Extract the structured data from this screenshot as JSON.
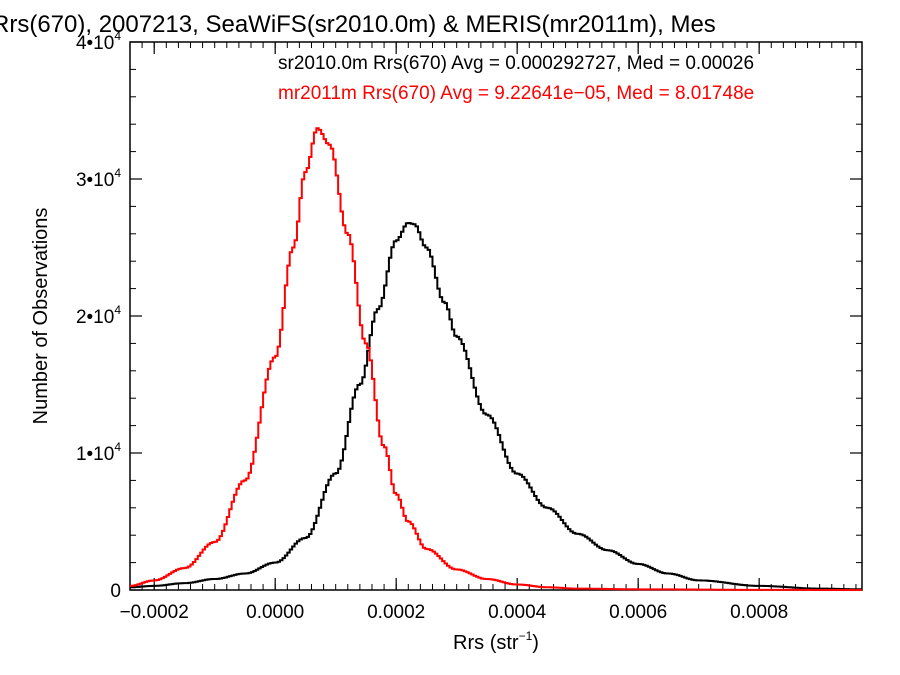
{
  "chart_data": {
    "type": "line",
    "title": "Rrs(670), 2007213, SeaWiFS(sr2010.0m) & MERIS(mr2011m), Mes",
    "xlabel": "Rrs (str",
    "xlabel_sup": "−1",
    "xlabel_end": ")",
    "ylabel": "Number of Observations",
    "xlim": [
      -0.00024,
      0.00097
    ],
    "ylim": [
      0,
      40000
    ],
    "x_ticks": [
      {
        "value": -0.0002,
        "label": "−0.0002"
      },
      {
        "value": 0.0,
        "label": "0.0000"
      },
      {
        "value": 0.0002,
        "label": "0.0002"
      },
      {
        "value": 0.0004,
        "label": "0.0004"
      },
      {
        "value": 0.0006,
        "label": "0.0006"
      },
      {
        "value": 0.0008,
        "label": "0.0008"
      }
    ],
    "y_ticks": [
      {
        "value": 0,
        "base": "0",
        "exp": ""
      },
      {
        "value": 10000,
        "base": "1•10",
        "exp": "4"
      },
      {
        "value": 20000,
        "base": "2•10",
        "exp": "4"
      },
      {
        "value": 30000,
        "base": "3•10",
        "exp": "4"
      },
      {
        "value": 40000,
        "base": "4•10",
        "exp": "4"
      }
    ],
    "annotations": [
      {
        "text": "sr2010.0m Rrs(670) Avg = 0.000292727, Med = 0.00026",
        "color": "#000000"
      },
      {
        "text": "mr2011m Rrs(670) Avg = 9.22641e−05, Med = 8.01748e",
        "color": "#ff0000"
      }
    ],
    "series": [
      {
        "name": "sr2010.0m",
        "color": "#000000",
        "x": [
          -0.00024,
          -0.0002,
          -0.00015,
          -0.0001,
          -5e-05,
          0.0,
          5e-05,
          0.0001,
          0.00014,
          0.00017,
          0.0002,
          0.00022,
          0.00023,
          0.00025,
          0.00028,
          0.0003,
          0.00035,
          0.0004,
          0.00045,
          0.0005,
          0.00055,
          0.0006,
          0.00065,
          0.0007,
          0.0008,
          0.0009,
          0.00097
        ],
        "y": [
          200,
          300,
          500,
          800,
          1200,
          2000,
          3800,
          8500,
          15000,
          20500,
          25500,
          26800,
          26700,
          25000,
          21000,
          18500,
          12800,
          8500,
          6000,
          4100,
          2900,
          1900,
          1200,
          700,
          300,
          100,
          50
        ]
      },
      {
        "name": "mr2011m",
        "color": "#ff0000",
        "x": [
          -0.00024,
          -0.0002,
          -0.00015,
          -0.0001,
          -5e-05,
          0.0,
          3e-05,
          5e-05,
          7e-05,
          9e-05,
          0.00012,
          0.00015,
          0.00018,
          0.0002,
          0.00022,
          0.00025,
          0.0003,
          0.00035,
          0.0004,
          0.00045,
          0.0005,
          0.0006,
          0.0008,
          0.00097
        ],
        "y": [
          300,
          700,
          1600,
          3500,
          8000,
          17000,
          25000,
          30500,
          33700,
          32500,
          26000,
          18000,
          10500,
          7000,
          5000,
          3000,
          1500,
          800,
          400,
          200,
          100,
          50,
          10,
          0
        ]
      }
    ]
  }
}
